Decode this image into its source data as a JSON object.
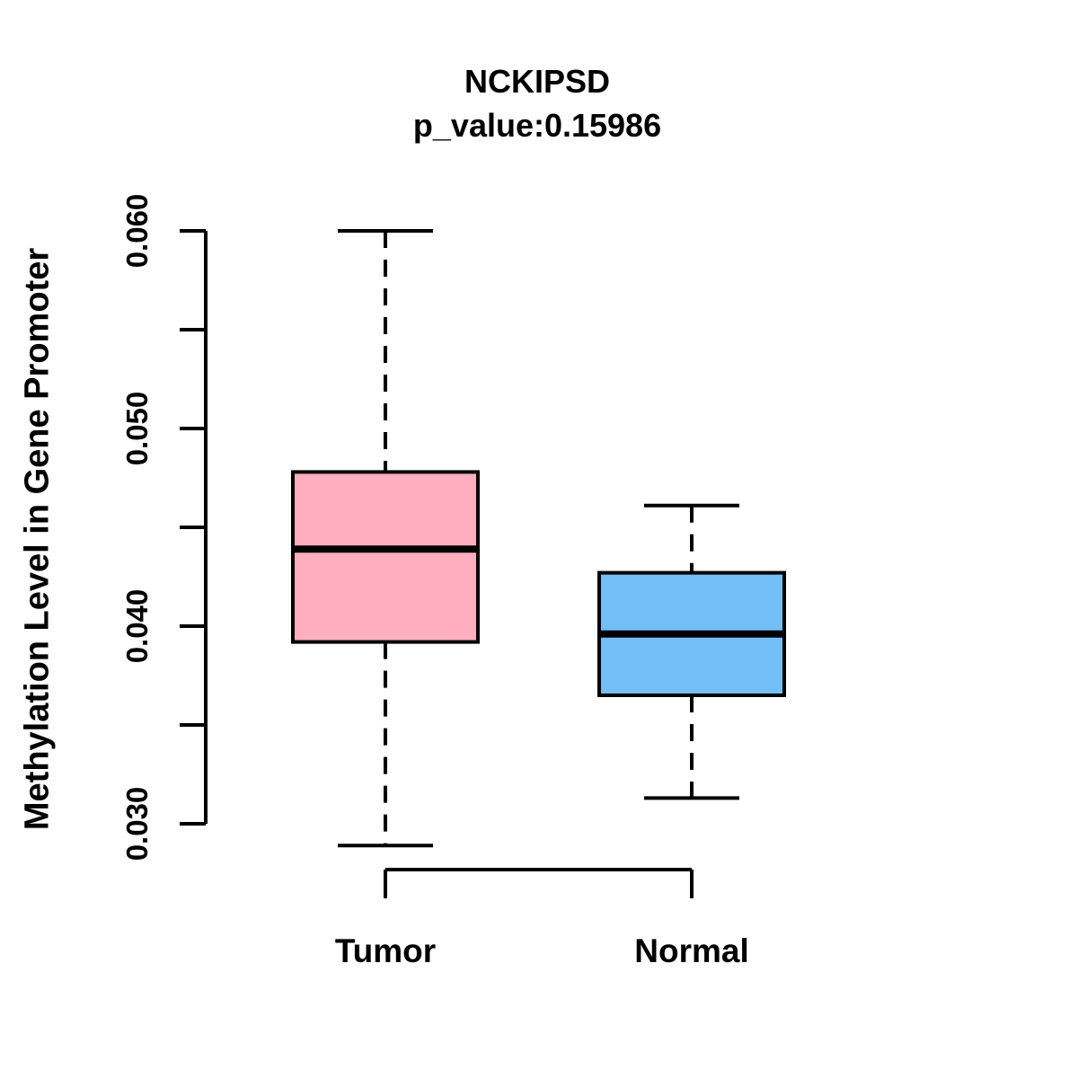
{
  "chart_data": {
    "type": "boxplot",
    "title": "NCKIPSD",
    "subtitle": "p_value:0.15986",
    "ylabel": "Methylation Level in Gene Promoter",
    "xlabel": "",
    "categories": [
      "Tumor",
      "Normal"
    ],
    "series": [
      {
        "name": "Tumor",
        "color": "#FFAEC0",
        "whisker_low": 0.0289,
        "q1": 0.0392,
        "median": 0.0439,
        "q3": 0.0478,
        "whisker_high": 0.06
      },
      {
        "name": "Normal",
        "color": "#73BEF5",
        "whisker_low": 0.0313,
        "q1": 0.0365,
        "median": 0.0396,
        "q3": 0.0427,
        "whisker_high": 0.0461
      }
    ],
    "y_ticks": [
      {
        "v": 0.03,
        "label": "0.030"
      },
      {
        "v": 0.035,
        "label": ""
      },
      {
        "v": 0.04,
        "label": "0.040"
      },
      {
        "v": 0.045,
        "label": ""
      },
      {
        "v": 0.05,
        "label": "0.050"
      },
      {
        "v": 0.055,
        "label": ""
      },
      {
        "v": 0.06,
        "label": "0.060"
      }
    ],
    "ylim": [
      0.03,
      0.06
    ],
    "grid": false,
    "legend_position": "none",
    "line_color": "#000000",
    "background": "#FFFFFF"
  }
}
